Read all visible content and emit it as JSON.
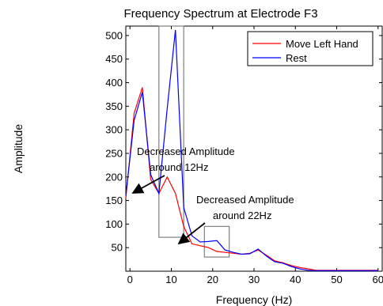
{
  "chart_data": {
    "type": "line",
    "title": "Frequency Spectrum at Electrode F3",
    "xlabel": "Frequency (Hz)",
    "ylabel": "Amplitude",
    "xlim": [
      -1,
      61
    ],
    "ylim": [
      0,
      520
    ],
    "x_ticks": [
      0,
      10,
      20,
      30,
      40,
      50,
      60
    ],
    "y_ticks": [
      50,
      100,
      150,
      200,
      250,
      300,
      350,
      400,
      450,
      500
    ],
    "grid": false,
    "legend_position": "top-right",
    "series": [
      {
        "name": "Move Left Hand",
        "color": "#ff0000",
        "x": [
          -1,
          1,
          3,
          5,
          7,
          9,
          11,
          13,
          15,
          17,
          19,
          21,
          23,
          25,
          27,
          29,
          31,
          33,
          35,
          37,
          39,
          41,
          43,
          45,
          50,
          55,
          60
        ],
        "y": [
          155,
          335,
          390,
          195,
          165,
          200,
          165,
          95,
          58,
          54,
          50,
          42,
          40,
          38,
          36,
          38,
          45,
          34,
          22,
          18,
          12,
          8,
          5,
          2,
          2,
          2,
          2
        ]
      },
      {
        "name": "Rest",
        "color": "#0000ff",
        "x": [
          -1,
          1,
          3,
          5,
          7,
          9,
          11,
          13,
          15,
          17,
          19,
          21,
          23,
          25,
          27,
          29,
          31,
          33,
          35,
          37,
          39,
          41,
          43,
          45,
          50,
          55,
          60
        ],
        "y": [
          160,
          320,
          380,
          205,
          165,
          345,
          512,
          135,
          75,
          62,
          63,
          65,
          45,
          40,
          36,
          37,
          47,
          32,
          20,
          17,
          10,
          5,
          2,
          1,
          1,
          1,
          1
        ]
      }
    ],
    "annotations": [
      {
        "text_lines": [
          "Decreased Amplitude",
          "around 12Hz"
        ],
        "arrow_to": [
          11,
          165
        ]
      },
      {
        "text_lines": [
          "Decreased Amplitude",
          "around 22Hz"
        ],
        "arrow_to": [
          21,
          42
        ]
      }
    ],
    "highlight_boxes": [
      {
        "x": [
          7,
          13
        ],
        "y": [
          72,
          520
        ]
      },
      {
        "x": [
          18,
          24
        ],
        "y": [
          30,
          95
        ]
      }
    ]
  }
}
